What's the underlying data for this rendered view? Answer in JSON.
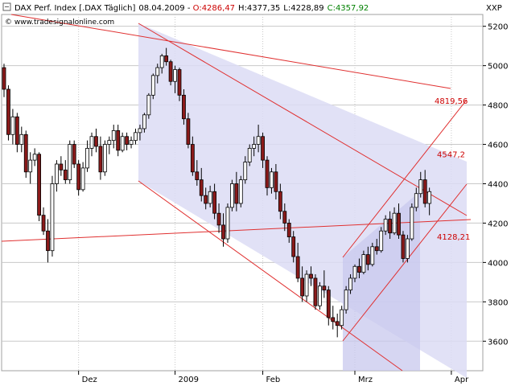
{
  "header": {
    "title_prefix": "DAX Perf. Index [.DAX Täglich]",
    "date": "08.04.2009",
    "open": "O:4286,47",
    "high": "H:4377,35",
    "low": "L:4228,89",
    "close": "C:4357,92",
    "website": "© www.tradesignalonline.com",
    "unit": "XXP"
  },
  "colors": {
    "background": "#ffffff",
    "up_candle": "#ffffff",
    "down_candle": "#8b1a1a",
    "wick": "#000000",
    "grid": "#c8c8c8",
    "trendline": "#e03030",
    "channel_fill": "#dcdcf5",
    "open_color": "#cc0000",
    "close_color": "#008000",
    "annotation": "#cc0000"
  },
  "chart_data": {
    "type": "candlestick",
    "title": "DAX Perf. Index [.DAX Täglich]",
    "ylim": [
      3450,
      5260
    ],
    "x_ticks": [
      {
        "label": "Dez",
        "index": 17
      },
      {
        "label": "2009",
        "index": 39
      },
      {
        "label": "Feb",
        "index": 59
      },
      {
        "label": "Mrz",
        "index": 80
      },
      {
        "label": "Apr",
        "index": 102
      }
    ],
    "y_ticks": [
      3600,
      3800,
      4000,
      4200,
      4400,
      4600,
      4800,
      5000,
      5200
    ],
    "annotations": [
      {
        "text": "4819,56",
        "price": 4819.56
      },
      {
        "text": "4547,2",
        "price": 4547.2
      },
      {
        "text": "4128,21",
        "price": 4128.21
      }
    ],
    "candles": [
      [
        4990,
        5010,
        4840,
        4880
      ],
      [
        4880,
        4900,
        4620,
        4650
      ],
      [
        4650,
        4780,
        4600,
        4740
      ],
      [
        4740,
        4760,
        4560,
        4600
      ],
      [
        4600,
        4690,
        4560,
        4650
      ],
      [
        4650,
        4670,
        4430,
        4460
      ],
      [
        4460,
        4560,
        4400,
        4520
      ],
      [
        4520,
        4580,
        4490,
        4550
      ],
      [
        4550,
        4560,
        4210,
        4240
      ],
      [
        4240,
        4280,
        4140,
        4160
      ],
      [
        4160,
        4220,
        4000,
        4060
      ],
      [
        4060,
        4440,
        4030,
        4400
      ],
      [
        4400,
        4520,
        4360,
        4500
      ],
      [
        4500,
        4540,
        4440,
        4470
      ],
      [
        4470,
        4520,
        4400,
        4420
      ],
      [
        4420,
        4620,
        4400,
        4600
      ],
      [
        4600,
        4620,
        4480,
        4500
      ],
      [
        4500,
        4520,
        4340,
        4370
      ],
      [
        4370,
        4510,
        4360,
        4480
      ],
      [
        4480,
        4620,
        4460,
        4580
      ],
      [
        4580,
        4660,
        4540,
        4640
      ],
      [
        4640,
        4680,
        4560,
        4590
      ],
      [
        4590,
        4640,
        4420,
        4460
      ],
      [
        4460,
        4620,
        4440,
        4600
      ],
      [
        4600,
        4640,
        4550,
        4620
      ],
      [
        4620,
        4700,
        4580,
        4670
      ],
      [
        4670,
        4700,
        4540,
        4570
      ],
      [
        4570,
        4660,
        4560,
        4640
      ],
      [
        4640,
        4660,
        4570,
        4600
      ],
      [
        4600,
        4640,
        4580,
        4620
      ],
      [
        4620,
        4680,
        4600,
        4660
      ],
      [
        4660,
        4700,
        4620,
        4680
      ],
      [
        4680,
        4760,
        4660,
        4750
      ],
      [
        4750,
        4860,
        4730,
        4850
      ],
      [
        4850,
        4960,
        4830,
        4950
      ],
      [
        4950,
        5010,
        4910,
        4990
      ],
      [
        4990,
        5060,
        4960,
        5050
      ],
      [
        5050,
        5090,
        5000,
        5020
      ],
      [
        5020,
        5030,
        4900,
        4920
      ],
      [
        4920,
        5000,
        4860,
        4980
      ],
      [
        4980,
        4990,
        4820,
        4850
      ],
      [
        4850,
        4880,
        4700,
        4730
      ],
      [
        4730,
        4760,
        4580,
        4600
      ],
      [
        4600,
        4640,
        4440,
        4460
      ],
      [
        4460,
        4520,
        4390,
        4420
      ],
      [
        4420,
        4480,
        4310,
        4340
      ],
      [
        4340,
        4380,
        4270,
        4300
      ],
      [
        4300,
        4390,
        4280,
        4360
      ],
      [
        4360,
        4400,
        4220,
        4250
      ],
      [
        4250,
        4300,
        4150,
        4190
      ],
      [
        4190,
        4250,
        4080,
        4120
      ],
      [
        4120,
        4300,
        4100,
        4280
      ],
      [
        4280,
        4420,
        4260,
        4400
      ],
      [
        4400,
        4460,
        4260,
        4300
      ],
      [
        4300,
        4440,
        4280,
        4420
      ],
      [
        4420,
        4540,
        4400,
        4510
      ],
      [
        4510,
        4600,
        4490,
        4580
      ],
      [
        4580,
        4640,
        4540,
        4600
      ],
      [
        4600,
        4700,
        4560,
        4640
      ],
      [
        4640,
        4660,
        4480,
        4520
      ],
      [
        4520,
        4540,
        4340,
        4380
      ],
      [
        4380,
        4480,
        4350,
        4460
      ],
      [
        4460,
        4500,
        4320,
        4360
      ],
      [
        4360,
        4400,
        4220,
        4260
      ],
      [
        4260,
        4300,
        4160,
        4200
      ],
      [
        4200,
        4220,
        4100,
        4130
      ],
      [
        4130,
        4160,
        4000,
        4030
      ],
      [
        4030,
        4100,
        3900,
        3920
      ],
      [
        3920,
        3980,
        3800,
        3830
      ],
      [
        3830,
        3960,
        3800,
        3940
      ],
      [
        3940,
        3980,
        3880,
        3920
      ],
      [
        3920,
        3940,
        3760,
        3780
      ],
      [
        3780,
        3900,
        3760,
        3880
      ],
      [
        3880,
        3960,
        3820,
        3860
      ],
      [
        3860,
        3880,
        3680,
        3720
      ],
      [
        3720,
        3780,
        3660,
        3700
      ],
      [
        3700,
        3740,
        3620,
        3680
      ],
      [
        3680,
        3780,
        3660,
        3760
      ],
      [
        3760,
        3880,
        3740,
        3860
      ],
      [
        3860,
        3940,
        3840,
        3920
      ],
      [
        3920,
        3990,
        3900,
        3980
      ],
      [
        3980,
        4020,
        3920,
        3950
      ],
      [
        3950,
        4060,
        3940,
        4040
      ],
      [
        4040,
        4080,
        3960,
        3990
      ],
      [
        3990,
        4100,
        3980,
        4080
      ],
      [
        4080,
        4120,
        4040,
        4060
      ],
      [
        4060,
        4180,
        4050,
        4160
      ],
      [
        4160,
        4240,
        4140,
        4220
      ],
      [
        4220,
        4260,
        4120,
        4150
      ],
      [
        4150,
        4280,
        4140,
        4250
      ],
      [
        4250,
        4300,
        4120,
        4140
      ],
      [
        4140,
        4160,
        4000,
        4020
      ],
      [
        4020,
        4140,
        4000,
        4120
      ],
      [
        4120,
        4300,
        4110,
        4280
      ],
      [
        4280,
        4380,
        4260,
        4350
      ],
      [
        4350,
        4460,
        4330,
        4420
      ],
      [
        4420,
        4470,
        4280,
        4300
      ],
      [
        4300,
        4380,
        4240,
        4360
      ]
    ]
  }
}
